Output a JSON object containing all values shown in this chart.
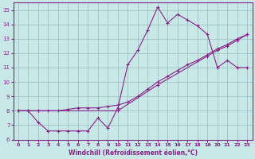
{
  "xlabel": "Windchill (Refroidissement éolien,°C)",
  "bg_color": "#c8e8e8",
  "line_color": "#882288",
  "grid_color": "#99bbbb",
  "xlim": [
    -0.5,
    23.5
  ],
  "ylim": [
    6,
    15.5
  ],
  "xticks": [
    0,
    1,
    2,
    3,
    4,
    5,
    6,
    7,
    8,
    9,
    10,
    11,
    12,
    13,
    14,
    15,
    16,
    17,
    18,
    19,
    20,
    21,
    22,
    23
  ],
  "yticks": [
    6,
    7,
    8,
    9,
    10,
    11,
    12,
    13,
    14,
    15
  ],
  "line1_x": [
    0,
    1,
    2,
    3,
    4,
    5,
    6,
    7,
    8,
    9,
    10,
    11,
    12,
    13,
    14,
    15,
    16,
    17,
    18,
    19,
    20,
    21,
    22,
    23
  ],
  "line1_y": [
    8.0,
    8.0,
    7.2,
    6.6,
    6.6,
    6.6,
    6.6,
    6.6,
    7.5,
    6.8,
    8.2,
    11.2,
    12.2,
    13.6,
    15.2,
    14.1,
    14.7,
    14.3,
    13.9,
    13.3,
    11.0,
    11.5,
    11.0,
    11.0
  ],
  "line2_x": [
    0,
    1,
    2,
    10,
    14,
    19,
    20,
    21,
    22,
    23
  ],
  "line2_y": [
    8.0,
    8.0,
    8.0,
    8.0,
    9.8,
    11.8,
    12.2,
    12.5,
    12.9,
    13.3
  ],
  "line3_x": [
    0,
    1,
    2,
    3,
    4,
    5,
    6,
    7,
    8,
    9,
    10,
    11,
    12,
    13,
    14,
    15,
    16,
    17,
    18,
    19,
    20,
    21,
    22,
    23
  ],
  "line3_y": [
    8.0,
    8.0,
    8.0,
    8.0,
    8.0,
    8.1,
    8.2,
    8.2,
    8.2,
    8.3,
    8.4,
    8.6,
    9.0,
    9.5,
    10.0,
    10.4,
    10.8,
    11.2,
    11.5,
    11.9,
    12.3,
    12.6,
    13.0,
    13.3
  ]
}
